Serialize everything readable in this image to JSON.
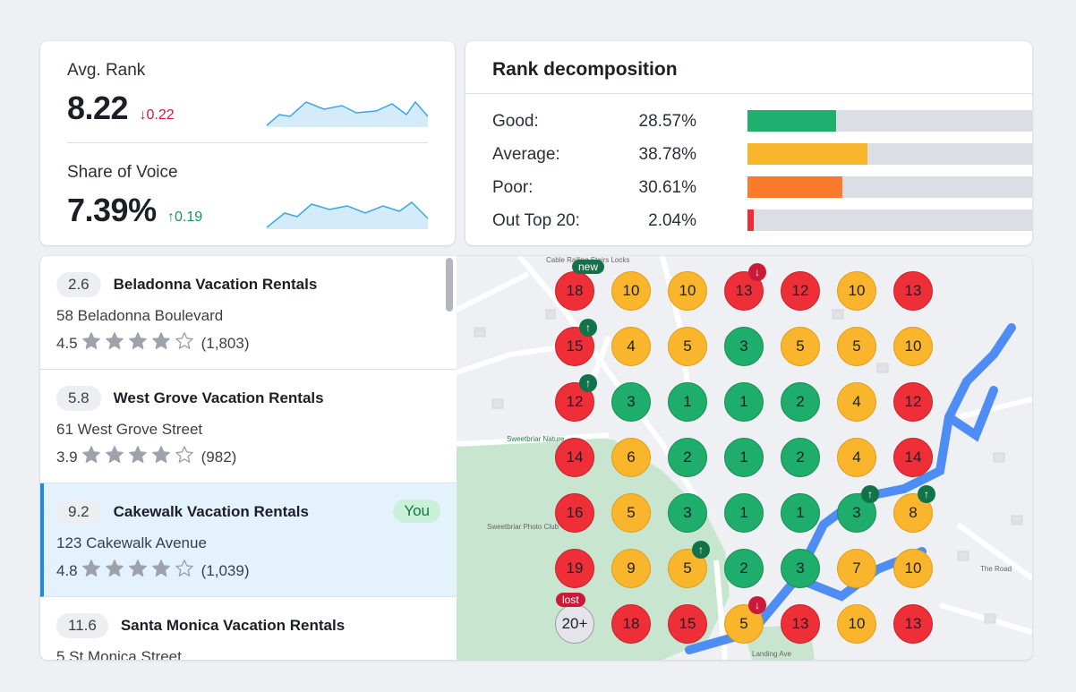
{
  "metrics": {
    "avg_rank": {
      "label": "Avg. Rank",
      "value": "8.22",
      "delta": "0.22",
      "direction": "down"
    },
    "share_of_voice": {
      "label": "Share of Voice",
      "value": "7.39%",
      "delta": "0.19",
      "direction": "up"
    }
  },
  "decomposition": {
    "title": "Rank decomposition",
    "rows": [
      {
        "label": "Good:",
        "pct": "28.57%",
        "value": 28.57,
        "color": "#1fb070"
      },
      {
        "label": "Average:",
        "pct": "38.78%",
        "value": 38.78,
        "color": "#f9b52c"
      },
      {
        "label": "Poor:",
        "pct": "30.61%",
        "value": 30.61,
        "color": "#fa7a2c"
      },
      {
        "label": "Out Top 20:",
        "pct": "2.04%",
        "value": 2.04,
        "color": "#ee2f38"
      }
    ]
  },
  "listings": [
    {
      "score": "2.6",
      "name": "Beladonna Vacation Rentals",
      "address": "58 Beladonna Boulevard",
      "rating": "4.5",
      "stars": 4,
      "reviews": "(1,803)",
      "selected": false
    },
    {
      "score": "5.8",
      "name": "West Grove Vacation Rentals",
      "address": "61 West Grove Street",
      "rating": "3.9",
      "stars": 4,
      "reviews": "(982)",
      "selected": false
    },
    {
      "score": "9.2",
      "name": "Cakewalk Vacation Rentals",
      "address": "123 Cakewalk Avenue",
      "rating": "4.8",
      "stars": 4,
      "reviews": "(1,039)",
      "selected": true,
      "badge": "You"
    },
    {
      "score": "11.6",
      "name": "Santa Monica Vacation Rentals",
      "address": "5 St Monica Street",
      "rating": "",
      "stars": 0,
      "reviews": "",
      "selected": false
    }
  ],
  "map": {
    "grid": [
      [
        {
          "v": "18",
          "c": "red",
          "tag": "new"
        },
        {
          "v": "10",
          "c": "orange"
        },
        {
          "v": "10",
          "c": "orange"
        },
        {
          "v": "13",
          "c": "red",
          "arrow": "down"
        },
        {
          "v": "12",
          "c": "red"
        },
        {
          "v": "10",
          "c": "orange"
        },
        {
          "v": "13",
          "c": "red"
        }
      ],
      [
        {
          "v": "15",
          "c": "red",
          "arrow": "up"
        },
        {
          "v": "4",
          "c": "orange"
        },
        {
          "v": "5",
          "c": "orange"
        },
        {
          "v": "3",
          "c": "green"
        },
        {
          "v": "5",
          "c": "orange"
        },
        {
          "v": "5",
          "c": "orange"
        },
        {
          "v": "10",
          "c": "orange"
        }
      ],
      [
        {
          "v": "12",
          "c": "red",
          "arrow": "up"
        },
        {
          "v": "3",
          "c": "green"
        },
        {
          "v": "1",
          "c": "green"
        },
        {
          "v": "1",
          "c": "green"
        },
        {
          "v": "2",
          "c": "green"
        },
        {
          "v": "4",
          "c": "orange"
        },
        {
          "v": "12",
          "c": "red"
        }
      ],
      [
        {
          "v": "14",
          "c": "red"
        },
        {
          "v": "6",
          "c": "orange"
        },
        {
          "v": "2",
          "c": "green"
        },
        {
          "v": "1",
          "c": "green"
        },
        {
          "v": "2",
          "c": "green"
        },
        {
          "v": "4",
          "c": "orange"
        },
        {
          "v": "14",
          "c": "red"
        }
      ],
      [
        {
          "v": "16",
          "c": "red"
        },
        {
          "v": "5",
          "c": "orange"
        },
        {
          "v": "3",
          "c": "green"
        },
        {
          "v": "1",
          "c": "green"
        },
        {
          "v": "1",
          "c": "green"
        },
        {
          "v": "3",
          "c": "green",
          "arrow": "up"
        },
        {
          "v": "8",
          "c": "orange",
          "arrow": "up"
        }
      ],
      [
        {
          "v": "19",
          "c": "red"
        },
        {
          "v": "9",
          "c": "orange"
        },
        {
          "v": "5",
          "c": "orange",
          "arrow": "up"
        },
        {
          "v": "2",
          "c": "green"
        },
        {
          "v": "3",
          "c": "green"
        },
        {
          "v": "7",
          "c": "orange"
        },
        {
          "v": "10",
          "c": "orange"
        }
      ],
      [
        {
          "v": "20+",
          "c": "gray",
          "tag": "lost"
        },
        {
          "v": "18",
          "c": "red"
        },
        {
          "v": "15",
          "c": "red"
        },
        {
          "v": "5",
          "c": "orange",
          "arrow": "down"
        },
        {
          "v": "13",
          "c": "red"
        },
        {
          "v": "10",
          "c": "orange"
        },
        {
          "v": "13",
          "c": "red"
        }
      ]
    ],
    "labels": [
      "Sweetbriar Nature",
      "Sweetbriar Photo Club",
      "Landing Ave",
      "Cable Railing Stairs Locks",
      "The Road"
    ]
  }
}
